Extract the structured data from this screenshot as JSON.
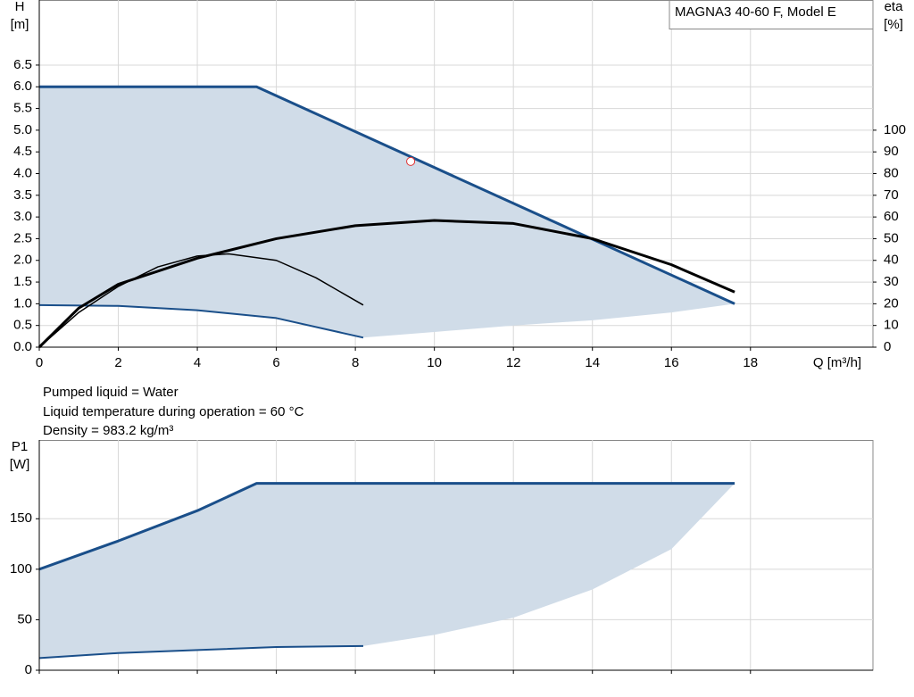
{
  "chart_data": [
    {
      "type": "line",
      "title": "MAGNA3 40-60 F, Model E",
      "y_label": [
        "H",
        "[m]"
      ],
      "y2_label": [
        "eta",
        "[%]"
      ],
      "x_label": "Q [m³/h]",
      "xlim": [
        0,
        21.1
      ],
      "xticks": [
        0,
        2,
        4,
        6,
        8,
        10,
        12,
        14,
        16,
        18
      ],
      "ylim": [
        0,
        8
      ],
      "yticks": [
        {
          "value": 0,
          "label": "0.0"
        },
        {
          "value": 0.5,
          "label": "0.5"
        },
        {
          "value": 1,
          "label": "1.0"
        },
        {
          "value": 1.5,
          "label": "1.5"
        },
        {
          "value": 2,
          "label": "2.0"
        },
        {
          "value": 2.5,
          "label": "2.5"
        },
        {
          "value": 3,
          "label": "3.0"
        },
        {
          "value": 3.5,
          "label": "3.5"
        },
        {
          "value": 4,
          "label": "4.0"
        },
        {
          "value": 4.5,
          "label": "4.5"
        },
        {
          "value": 5,
          "label": "5.0"
        },
        {
          "value": 5.5,
          "label": "5.5"
        },
        {
          "value": 6,
          "label": "6.0"
        },
        {
          "value": 6.5,
          "label": "6.5"
        }
      ],
      "y2lim": [
        0,
        160
      ],
      "y2ticks": [
        0,
        10,
        20,
        30,
        40,
        50,
        60,
        70,
        80,
        90,
        100
      ],
      "grid": true,
      "areas": [
        {
          "color": "#d0dce8",
          "x": [
            0,
            5.5,
            17.6,
            16,
            14,
            12,
            10,
            8.2,
            6,
            4,
            2,
            0
          ],
          "values": [
            6,
            6,
            1.0,
            0.8,
            0.62,
            0.5,
            0.35,
            0.22,
            0.67,
            0.85,
            0.95,
            0.97
          ]
        }
      ],
      "series": [
        {
          "color": "#1a4f8a",
          "width": 3,
          "x": [
            0,
            5.5,
            17.6
          ],
          "values": [
            6,
            6,
            1.0
          ]
        },
        {
          "color": "#1a4f8a",
          "width": 2,
          "x": [
            0,
            2,
            4,
            6,
            8.2
          ],
          "values": [
            0.97,
            0.95,
            0.85,
            0.67,
            0.22
          ]
        },
        {
          "color": "#000000",
          "width": 3,
          "axis": "y2",
          "x": [
            0,
            1,
            2,
            4,
            6,
            8,
            10,
            12,
            14,
            16,
            17.6
          ],
          "values": [
            0,
            18,
            29,
            41,
            50,
            56,
            58.4,
            57,
            50,
            38,
            25.4
          ]
        },
        {
          "color": "#000000",
          "width": 1.5,
          "axis": "y2",
          "x": [
            0,
            1,
            2,
            3,
            4,
            4.8,
            6,
            7,
            8.2
          ],
          "values": [
            0,
            16,
            28,
            37,
            42,
            43,
            40,
            32,
            19.4
          ]
        }
      ],
      "markers": [
        {
          "color": "#e03030",
          "x": 9.4,
          "value": 4.28
        }
      ]
    },
    {
      "type": "line",
      "y_label": [
        "P1",
        "[W]"
      ],
      "xlim": [
        0,
        21.1
      ],
      "xticks": [
        0,
        2,
        4,
        6,
        8,
        10,
        12,
        14,
        16,
        18
      ],
      "ylim": [
        0,
        228
      ],
      "yticks": [
        0,
        50,
        100,
        150
      ],
      "grid": true,
      "areas": [
        {
          "color": "#d0dce8",
          "x": [
            0,
            2,
            4,
            5.5,
            17.6,
            16,
            14,
            12,
            10,
            8.2,
            6,
            4,
            2,
            0
          ],
          "values": [
            100,
            128,
            158,
            185,
            185,
            120,
            80,
            52,
            35,
            24,
            23,
            20,
            17,
            12
          ]
        }
      ],
      "series": [
        {
          "color": "#1a4f8a",
          "width": 3,
          "x": [
            0,
            2,
            4,
            5.5,
            17.6
          ],
          "values": [
            100,
            128,
            158,
            185,
            185
          ]
        },
        {
          "color": "#1a4f8a",
          "width": 2,
          "x": [
            0,
            2,
            4,
            6,
            8.2
          ],
          "values": [
            12,
            17,
            20,
            23,
            24
          ]
        }
      ]
    }
  ],
  "notes": [
    "Pumped liquid = Water",
    "Liquid temperature during operation = 60 °C",
    "Density = 983.2 kg/m³"
  ]
}
